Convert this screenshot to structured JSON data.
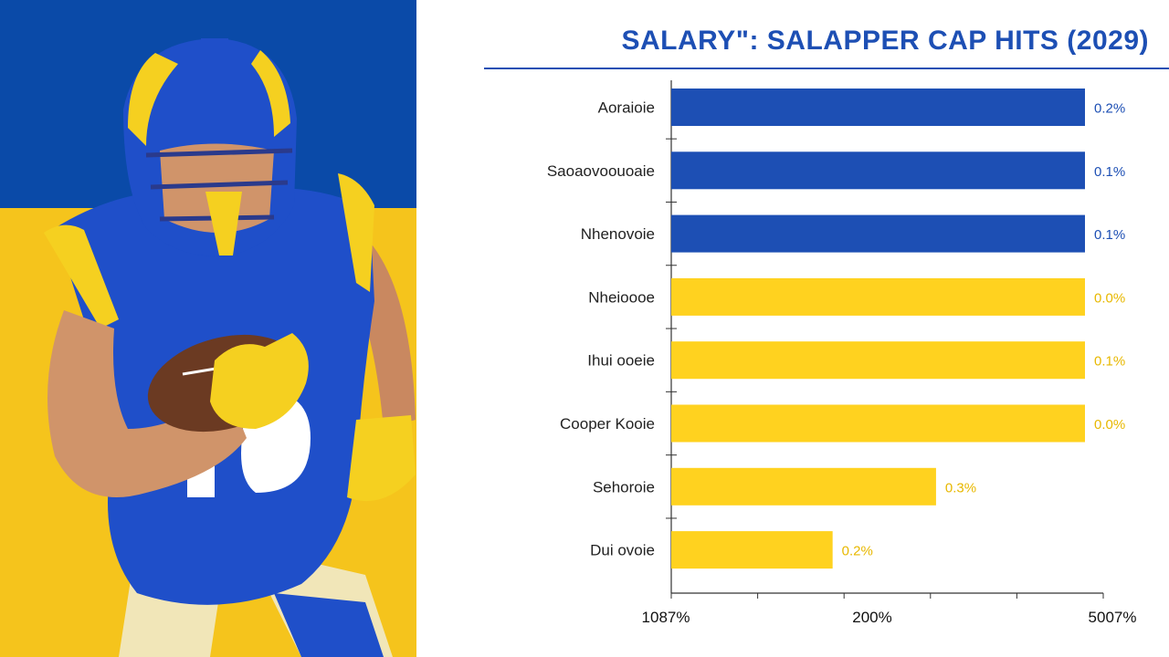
{
  "colors": {
    "blue": "#1d4fb4",
    "yellow": "#ffd21f",
    "hero_blue": "#0a4aa8",
    "hero_yellow": "#f5c41c"
  },
  "chart_data": {
    "type": "bar",
    "orientation": "horizontal",
    "title": "SALARY\": SALAPPER CAP HITS (2029)",
    "categories": [
      "Aoraioie",
      "Saoaovoouoaie",
      "Nhenovoie",
      "Nheioooe",
      "Ihui ooeie",
      "Cooper Kooie",
      "Sehoroie",
      "Dui ovoie"
    ],
    "values": [
      100,
      100,
      100,
      100,
      100,
      100,
      64,
      39
    ],
    "value_labels": [
      "0.2%",
      "0.1%",
      "0.1%",
      "0.0%",
      "0.1%",
      "0.0%",
      "0.3%",
      "0.2%"
    ],
    "bar_colors": [
      "#1d4fb4",
      "#1d4fb4",
      "#1d4fb4",
      "#ffd21f",
      "#ffd21f",
      "#ffd21f",
      "#ffd21f",
      "#ffd21f"
    ],
    "value_label_colors": [
      "#1d4fb4",
      "#1d4fb4",
      "#1d4fb4",
      "#e8b800",
      "#e8b800",
      "#e8b800",
      "#e8b800",
      "#e8b800"
    ],
    "x_tick_labels": [
      "1087%",
      "200%",
      "5007%"
    ],
    "xlim": [
      0,
      100
    ],
    "grid": false,
    "legend": "none"
  }
}
